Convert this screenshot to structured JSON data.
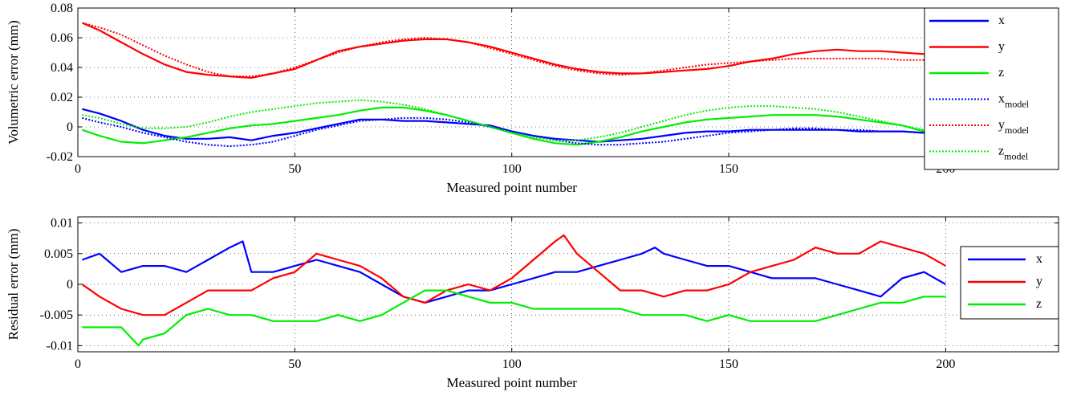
{
  "chart_data": [
    {
      "type": "line",
      "title": "",
      "xlabel": "Measured point number",
      "ylabel": "Volumetric error (mm)",
      "xlim": [
        0,
        226
      ],
      "ylim": [
        -0.02,
        0.08
      ],
      "xticks": [
        0,
        50,
        100,
        150,
        200
      ],
      "xtick_labels": [
        "0",
        "50",
        "100",
        "150",
        "200"
      ],
      "yticks": [
        -0.02,
        0,
        0.02,
        0.04,
        0.06,
        0.08
      ],
      "ytick_labels": [
        "-0.02",
        "0",
        "0.02",
        "0.04",
        "0.06",
        "0.08"
      ],
      "grid": true,
      "legend_position": "top-right",
      "series": [
        {
          "name": "x",
          "name_sub": "",
          "color": "#0000ff",
          "style": "solid",
          "legend": true,
          "x": [
            1,
            5,
            10,
            15,
            20,
            25,
            30,
            35,
            40,
            45,
            50,
            55,
            60,
            65,
            70,
            75,
            80,
            85,
            90,
            95,
            100,
            105,
            110,
            115,
            120,
            125,
            130,
            135,
            140,
            145,
            150,
            155,
            160,
            165,
            170,
            175,
            180,
            185,
            190,
            195,
            200
          ],
          "y": [
            0.012,
            0.009,
            0.004,
            -0.002,
            -0.006,
            -0.008,
            -0.008,
            -0.007,
            -0.009,
            -0.006,
            -0.004,
            -0.001,
            0.002,
            0.005,
            0.005,
            0.004,
            0.004,
            0.003,
            0.002,
            0.001,
            -0.003,
            -0.006,
            -0.008,
            -0.009,
            -0.01,
            -0.009,
            -0.008,
            -0.006,
            -0.004,
            -0.003,
            -0.003,
            -0.002,
            -0.002,
            -0.002,
            -0.002,
            -0.002,
            -0.003,
            -0.003,
            -0.003,
            -0.004,
            -0.004
          ]
        },
        {
          "name": "y",
          "name_sub": "",
          "color": "#ff0000",
          "style": "solid",
          "legend": true,
          "x": [
            1,
            5,
            10,
            15,
            20,
            25,
            30,
            35,
            40,
            45,
            50,
            55,
            60,
            65,
            70,
            75,
            80,
            85,
            90,
            95,
            100,
            105,
            110,
            115,
            120,
            125,
            130,
            135,
            140,
            145,
            150,
            155,
            160,
            165,
            170,
            175,
            180,
            185,
            190,
            195,
            200
          ],
          "y": [
            0.07,
            0.065,
            0.057,
            0.049,
            0.042,
            0.037,
            0.035,
            0.034,
            0.033,
            0.036,
            0.039,
            0.045,
            0.051,
            0.054,
            0.056,
            0.058,
            0.059,
            0.059,
            0.057,
            0.054,
            0.05,
            0.046,
            0.042,
            0.039,
            0.037,
            0.036,
            0.036,
            0.037,
            0.038,
            0.039,
            0.041,
            0.044,
            0.046,
            0.049,
            0.051,
            0.052,
            0.051,
            0.051,
            0.05,
            0.049,
            0.047
          ]
        },
        {
          "name": "z",
          "name_sub": "",
          "color": "#00ee00",
          "style": "solid",
          "legend": true,
          "x": [
            1,
            5,
            10,
            15,
            20,
            25,
            30,
            35,
            40,
            45,
            50,
            55,
            60,
            65,
            70,
            75,
            80,
            85,
            90,
            95,
            100,
            105,
            110,
            115,
            120,
            125,
            130,
            135,
            140,
            145,
            150,
            155,
            160,
            165,
            170,
            175,
            180,
            185,
            190,
            195,
            200
          ],
          "y": [
            -0.002,
            -0.006,
            -0.01,
            -0.011,
            -0.009,
            -0.007,
            -0.004,
            -0.001,
            0.001,
            0.002,
            0.004,
            0.006,
            0.008,
            0.011,
            0.013,
            0.013,
            0.011,
            0.008,
            0.004,
            0.0,
            -0.004,
            -0.008,
            -0.011,
            -0.012,
            -0.01,
            -0.007,
            -0.003,
            0.0,
            0.003,
            0.005,
            0.006,
            0.007,
            0.008,
            0.008,
            0.008,
            0.007,
            0.005,
            0.003,
            0.001,
            -0.003,
            -0.006
          ]
        },
        {
          "name": "x",
          "name_sub": "model",
          "color": "#0000ff",
          "style": "dotted",
          "legend": true,
          "x": [
            1,
            5,
            10,
            15,
            20,
            25,
            30,
            35,
            40,
            45,
            50,
            55,
            60,
            65,
            70,
            75,
            80,
            85,
            90,
            95,
            100,
            105,
            110,
            115,
            120,
            125,
            130,
            135,
            140,
            145,
            150,
            155,
            160,
            165,
            170,
            175,
            180,
            185,
            190,
            195,
            200
          ],
          "y": [
            0.006,
            0.003,
            0.0,
            -0.004,
            -0.007,
            -0.01,
            -0.012,
            -0.013,
            -0.012,
            -0.01,
            -0.006,
            -0.002,
            0.001,
            0.004,
            0.005,
            0.006,
            0.006,
            0.005,
            0.003,
            0.0,
            -0.003,
            -0.006,
            -0.009,
            -0.011,
            -0.012,
            -0.012,
            -0.011,
            -0.01,
            -0.008,
            -0.006,
            -0.004,
            -0.003,
            -0.002,
            -0.001,
            -0.001,
            -0.002,
            -0.002,
            -0.003,
            -0.003,
            -0.004,
            -0.004
          ]
        },
        {
          "name": "y",
          "name_sub": "model",
          "color": "#ff0000",
          "style": "dotted",
          "legend": true,
          "x": [
            1,
            5,
            10,
            15,
            20,
            25,
            30,
            35,
            40,
            45,
            50,
            55,
            60,
            65,
            70,
            75,
            80,
            85,
            90,
            95,
            100,
            105,
            110,
            115,
            120,
            125,
            130,
            135,
            140,
            145,
            150,
            155,
            160,
            165,
            170,
            175,
            180,
            185,
            190,
            195,
            200
          ],
          "y": [
            0.07,
            0.067,
            0.062,
            0.055,
            0.048,
            0.042,
            0.037,
            0.034,
            0.034,
            0.036,
            0.04,
            0.045,
            0.05,
            0.054,
            0.057,
            0.059,
            0.06,
            0.059,
            0.057,
            0.053,
            0.049,
            0.045,
            0.041,
            0.038,
            0.036,
            0.035,
            0.036,
            0.038,
            0.04,
            0.042,
            0.043,
            0.044,
            0.045,
            0.046,
            0.046,
            0.046,
            0.046,
            0.046,
            0.045,
            0.045,
            0.044
          ]
        },
        {
          "name": "z",
          "name_sub": "model",
          "color": "#00ee00",
          "style": "dotted",
          "legend": true,
          "x": [
            1,
            5,
            10,
            15,
            20,
            25,
            30,
            35,
            40,
            45,
            50,
            55,
            60,
            65,
            70,
            75,
            80,
            85,
            90,
            95,
            100,
            105,
            110,
            115,
            120,
            125,
            130,
            135,
            140,
            145,
            150,
            155,
            160,
            165,
            170,
            175,
            180,
            185,
            190,
            195,
            200
          ],
          "y": [
            0.008,
            0.006,
            0.002,
            -0.001,
            -0.001,
            0.0,
            0.003,
            0.007,
            0.01,
            0.012,
            0.014,
            0.016,
            0.017,
            0.018,
            0.017,
            0.015,
            0.012,
            0.008,
            0.004,
            0.0,
            -0.004,
            -0.007,
            -0.009,
            -0.009,
            -0.007,
            -0.004,
            0.0,
            0.004,
            0.008,
            0.011,
            0.013,
            0.014,
            0.014,
            0.013,
            0.012,
            0.01,
            0.007,
            0.004,
            0.001,
            -0.002,
            -0.005
          ]
        }
      ]
    },
    {
      "type": "line",
      "title": "",
      "xlabel": "Measured point number",
      "ylabel": "Residual error (mm)",
      "xlim": [
        0,
        226
      ],
      "ylim": [
        -0.011,
        0.011
      ],
      "xticks": [
        0,
        50,
        100,
        150,
        200
      ],
      "xtick_labels": [
        "0",
        "50",
        "100",
        "150",
        "200"
      ],
      "yticks": [
        -0.01,
        -0.005,
        0,
        0.005,
        0.01
      ],
      "ytick_labels": [
        "-0.01",
        "-0.005",
        "0",
        "0.005",
        "0.01"
      ],
      "grid": true,
      "legend_position": "right",
      "series": [
        {
          "name": "x",
          "name_sub": "",
          "color": "#0000ff",
          "style": "solid",
          "legend": true,
          "x": [
            1,
            5,
            10,
            15,
            20,
            25,
            30,
            35,
            38,
            40,
            45,
            50,
            55,
            60,
            65,
            70,
            75,
            80,
            85,
            90,
            95,
            100,
            105,
            110,
            115,
            120,
            125,
            130,
            133,
            135,
            140,
            145,
            150,
            155,
            160,
            165,
            170,
            175,
            180,
            185,
            190,
            195,
            200
          ],
          "y": [
            0.004,
            0.005,
            0.002,
            0.003,
            0.003,
            0.002,
            0.004,
            0.006,
            0.007,
            0.002,
            0.002,
            0.003,
            0.004,
            0.003,
            0.002,
            0.0,
            -0.002,
            -0.003,
            -0.002,
            -0.001,
            -0.001,
            0.0,
            0.001,
            0.002,
            0.002,
            0.003,
            0.004,
            0.005,
            0.006,
            0.005,
            0.004,
            0.003,
            0.003,
            0.002,
            0.001,
            0.001,
            0.001,
            0.0,
            -0.001,
            -0.002,
            0.001,
            0.002,
            0.0
          ]
        },
        {
          "name": "y",
          "name_sub": "",
          "color": "#ff0000",
          "style": "solid",
          "legend": true,
          "x": [
            1,
            5,
            10,
            15,
            20,
            25,
            30,
            35,
            40,
            45,
            50,
            55,
            60,
            65,
            70,
            75,
            80,
            85,
            90,
            95,
            100,
            105,
            110,
            112,
            115,
            120,
            125,
            130,
            135,
            140,
            145,
            150,
            155,
            160,
            165,
            170,
            175,
            180,
            185,
            190,
            195,
            200
          ],
          "y": [
            0.0,
            -0.002,
            -0.004,
            -0.005,
            -0.005,
            -0.003,
            -0.001,
            -0.001,
            -0.001,
            0.001,
            0.002,
            0.005,
            0.004,
            0.003,
            0.001,
            -0.002,
            -0.003,
            -0.001,
            0.0,
            -0.001,
            0.001,
            0.004,
            0.007,
            0.008,
            0.005,
            0.002,
            -0.001,
            -0.001,
            -0.002,
            -0.001,
            -0.001,
            0.0,
            0.002,
            0.003,
            0.004,
            0.006,
            0.005,
            0.005,
            0.007,
            0.006,
            0.005,
            0.003
          ]
        },
        {
          "name": "z",
          "name_sub": "",
          "color": "#00ee00",
          "style": "solid",
          "legend": true,
          "x": [
            1,
            5,
            10,
            14,
            15,
            20,
            25,
            30,
            35,
            40,
            45,
            50,
            55,
            60,
            65,
            70,
            75,
            80,
            85,
            90,
            95,
            100,
            105,
            110,
            115,
            120,
            125,
            130,
            135,
            140,
            145,
            150,
            155,
            160,
            165,
            170,
            175,
            180,
            185,
            190,
            195,
            200
          ],
          "y": [
            -0.007,
            -0.007,
            -0.007,
            -0.01,
            -0.009,
            -0.008,
            -0.005,
            -0.004,
            -0.005,
            -0.005,
            -0.006,
            -0.006,
            -0.006,
            -0.005,
            -0.006,
            -0.005,
            -0.003,
            -0.001,
            -0.001,
            -0.002,
            -0.003,
            -0.003,
            -0.004,
            -0.004,
            -0.004,
            -0.004,
            -0.004,
            -0.005,
            -0.005,
            -0.005,
            -0.006,
            -0.005,
            -0.006,
            -0.006,
            -0.006,
            -0.006,
            -0.005,
            -0.004,
            -0.003,
            -0.003,
            -0.002,
            -0.002
          ]
        }
      ]
    }
  ]
}
